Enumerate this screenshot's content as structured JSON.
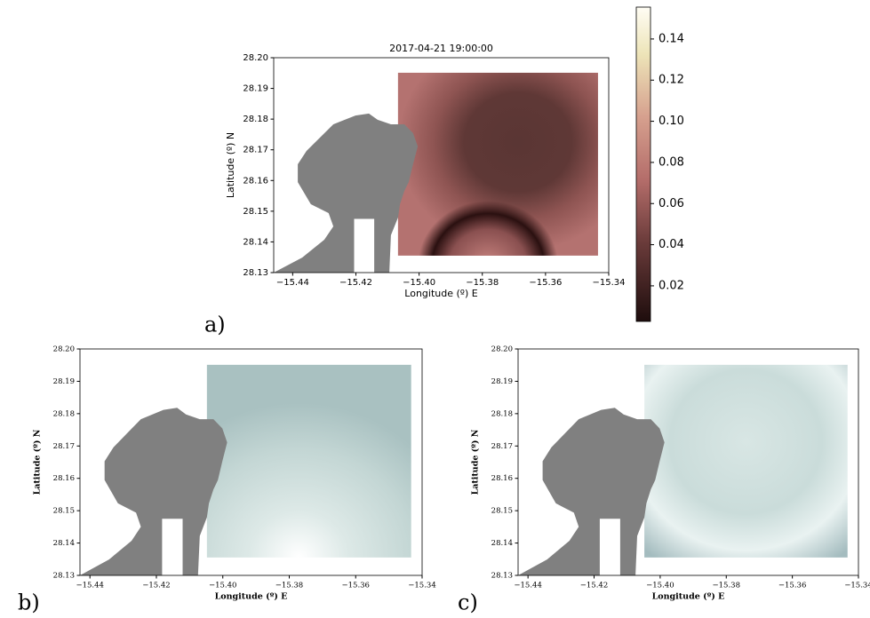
{
  "chart_data": [
    {
      "type": "heatmap",
      "title": "2017-04-21 19:00:00",
      "xlabel": "Longitude (º) E",
      "ylabel": "Latitude (º) N",
      "panel_label": "a)",
      "xlim": [
        -15.446,
        -15.34
      ],
      "ylim": [
        28.13,
        28.2
      ],
      "xticks": [
        {
          "value": -15.44,
          "label": "−15.44"
        },
        {
          "value": -15.42,
          "label": "−15.42"
        },
        {
          "value": -15.4,
          "label": "−15.40"
        },
        {
          "value": -15.38,
          "label": "−15.38"
        },
        {
          "value": -15.36,
          "label": "−15.36"
        },
        {
          "value": -15.34,
          "label": "−15.34"
        }
      ],
      "yticks": [
        {
          "value": 28.13,
          "label": "28.13"
        },
        {
          "value": 28.14,
          "label": "28.14"
        },
        {
          "value": 28.15,
          "label": "28.15"
        },
        {
          "value": 28.16,
          "label": "28.16"
        },
        {
          "value": 28.17,
          "label": "28.17"
        },
        {
          "value": 28.18,
          "label": "28.18"
        },
        {
          "value": 28.19,
          "label": "28.19"
        },
        {
          "value": 28.2,
          "label": "28.20"
        }
      ],
      "colorbar": {
        "clim": [
          0.0027,
          0.1555
        ],
        "ticks": [
          {
            "value": 0.02,
            "label": "0.02"
          },
          {
            "value": 0.04,
            "label": "0.04"
          },
          {
            "value": 0.06,
            "label": "0.06"
          },
          {
            "value": 0.08,
            "label": "0.08"
          },
          {
            "value": 0.1,
            "label": "0.10"
          },
          {
            "value": 0.12,
            "label": "0.12"
          },
          {
            "value": 0.14,
            "label": "0.14"
          }
        ]
      }
    },
    {
      "type": "heatmap",
      "xlabel": "Longitude (º) E",
      "ylabel": "Latitude (º) N",
      "panel_label": "b)",
      "xlim": [
        -15.443,
        -15.34
      ],
      "ylim": [
        28.13,
        28.2
      ],
      "xticks": [
        {
          "value": -15.44,
          "label": "−15.44"
        },
        {
          "value": -15.42,
          "label": "−15.42"
        },
        {
          "value": -15.4,
          "label": "−15.40"
        },
        {
          "value": -15.38,
          "label": "−15.38"
        },
        {
          "value": -15.36,
          "label": "−15.36"
        },
        {
          "value": -15.34,
          "label": "−15.34"
        }
      ],
      "yticks": [
        {
          "value": 28.13,
          "label": "28.13"
        },
        {
          "value": 28.14,
          "label": "28.14"
        },
        {
          "value": 28.15,
          "label": "28.15"
        },
        {
          "value": 28.16,
          "label": "28.16"
        },
        {
          "value": 28.17,
          "label": "28.17"
        },
        {
          "value": 28.18,
          "label": "28.18"
        },
        {
          "value": 28.19,
          "label": "28.19"
        },
        {
          "value": 28.2,
          "label": "28.20"
        }
      ]
    },
    {
      "type": "heatmap",
      "xlabel": "Longitude (º) E",
      "ylabel": "Latitude (º) N",
      "panel_label": "c)",
      "xlim": [
        -15.443,
        -15.34
      ],
      "ylim": [
        28.13,
        28.2
      ],
      "xticks": [
        {
          "value": -15.44,
          "label": "−15.44"
        },
        {
          "value": -15.42,
          "label": "−15.42"
        },
        {
          "value": -15.4,
          "label": "−15.40"
        },
        {
          "value": -15.38,
          "label": "−15.38"
        },
        {
          "value": -15.36,
          "label": "−15.36"
        },
        {
          "value": -15.34,
          "label": "−15.34"
        }
      ],
      "yticks": [
        {
          "value": 28.13,
          "label": "28.13"
        },
        {
          "value": 28.14,
          "label": "28.14"
        },
        {
          "value": 28.15,
          "label": "28.15"
        },
        {
          "value": 28.16,
          "label": "28.16"
        },
        {
          "value": 28.17,
          "label": "28.17"
        },
        {
          "value": 28.18,
          "label": "28.18"
        },
        {
          "value": 28.19,
          "label": "28.19"
        },
        {
          "value": 28.2,
          "label": "28.20"
        }
      ]
    }
  ]
}
